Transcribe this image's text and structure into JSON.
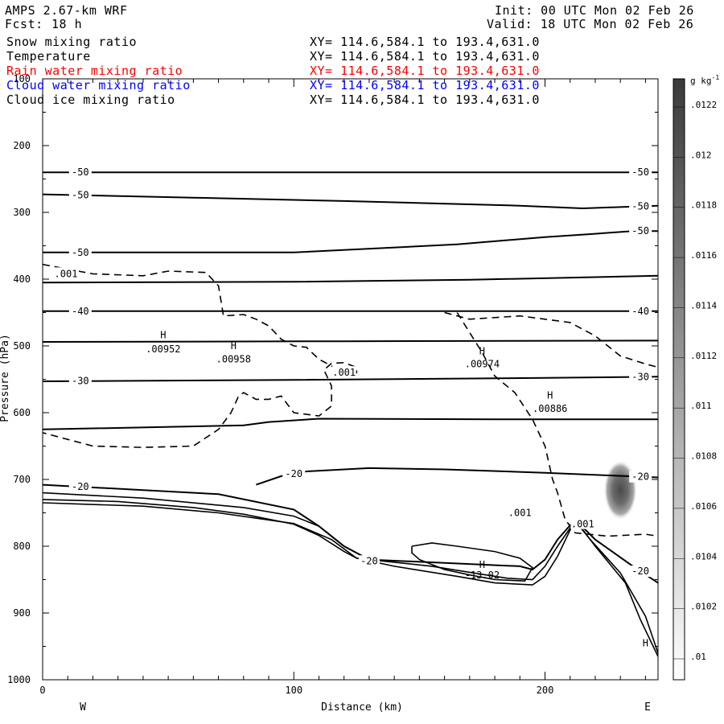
{
  "header": {
    "model": "AMPS 2.67-km WRF",
    "forecast_label": "Fcst:",
    "forecast_hours": "18 h",
    "init": "Init: 00 UTC Mon 02 Feb 26",
    "valid": "Valid: 18 UTC Mon 02 Feb 26"
  },
  "legend": [
    {
      "label": "Snow mixing ratio",
      "xy": "XY= 114.6,584.1 to 193.4,631.0",
      "color": "#000000"
    },
    {
      "label": "Temperature",
      "xy": "XY= 114.6,584.1 to 193.4,631.0",
      "color": "#000000"
    },
    {
      "label": "Rain water mixing ratio",
      "xy": "XY= 114.6,584.1 to 193.4,631.0",
      "color": "#ff0000"
    },
    {
      "label": "Cloud water mixing ratio",
      "xy": "XY= 114.6,584.1 to 193.4,631.0",
      "color": "#0000ff"
    },
    {
      "label": "Cloud ice mixing ratio",
      "xy": "XY= 114.6,584.1 to 193.4,631.0",
      "color": "#000000"
    }
  ],
  "chart_data": {
    "type": "cross-section contour",
    "xlabel": "Distance (km)",
    "ylabel": "Pressure (hPa)",
    "xlim": [
      0,
      245
    ],
    "ylim": [
      1000,
      100
    ],
    "x_ticks": [
      "0",
      "100",
      "200"
    ],
    "y_ticks": [
      "100",
      "200",
      "300",
      "400",
      "500",
      "600",
      "700",
      "800",
      "900",
      "1000"
    ],
    "x_end_labels": {
      "left": "W",
      "right": "E"
    },
    "colorbar": {
      "unit": "g kg",
      "unit_exponent": "-1",
      "labels": [
        ".0122",
        ".012",
        ".0118",
        ".0116",
        ".0114",
        ".0112",
        ".011",
        ".0108",
        ".0106",
        ".0104",
        ".0102",
        ".01"
      ],
      "color_low": "#ffffff",
      "color_high": "#3a3a3a"
    },
    "temperature_contours": [
      {
        "level": "-50",
        "points": [
          [
            0,
            240
          ],
          [
            245,
            240
          ]
        ]
      },
      {
        "level": "-50",
        "points": [
          [
            0,
            273
          ],
          [
            60,
            278
          ],
          [
            120,
            283
          ],
          [
            190,
            290
          ],
          [
            215,
            294
          ],
          [
            230,
            292
          ],
          [
            245,
            290
          ]
        ]
      },
      {
        "level": "-50",
        "points": [
          [
            0,
            360
          ],
          [
            100,
            360
          ],
          [
            165,
            348
          ],
          [
            200,
            337
          ],
          [
            220,
            332
          ],
          [
            235,
            328
          ],
          [
            245,
            328
          ]
        ]
      },
      {
        "level": "",
        "points": [
          [
            0,
            405
          ],
          [
            100,
            404
          ],
          [
            170,
            401
          ],
          [
            245,
            395
          ]
        ]
      },
      {
        "level": "-40",
        "points": [
          [
            0,
            448
          ],
          [
            245,
            448
          ]
        ]
      },
      {
        "level": "",
        "points": [
          [
            0,
            494
          ],
          [
            120,
            493
          ],
          [
            245,
            492
          ]
        ]
      },
      {
        "level": "-30",
        "points": [
          [
            0,
            553
          ],
          [
            100,
            551
          ],
          [
            200,
            548
          ],
          [
            245,
            546
          ]
        ]
      },
      {
        "level": "",
        "points": [
          [
            0,
            625
          ],
          [
            80,
            619
          ],
          [
            90,
            614
          ],
          [
            110,
            609
          ],
          [
            180,
            610
          ],
          [
            245,
            610
          ]
        ]
      },
      {
        "level": "-20",
        "points": [
          [
            85,
            708
          ],
          [
            95,
            695
          ],
          [
            105,
            688
          ],
          [
            130,
            683
          ],
          [
            160,
            685
          ],
          [
            200,
            690
          ],
          [
            245,
            697
          ]
        ]
      },
      {
        "level": "-20",
        "points": [
          [
            0,
            708
          ],
          [
            70,
            722
          ],
          [
            100,
            745
          ],
          [
            110,
            770
          ],
          [
            120,
            800
          ],
          [
            130,
            820
          ],
          [
            160,
            825
          ],
          [
            190,
            830
          ],
          [
            195,
            835
          ],
          [
            200,
            820
          ],
          [
            205,
            790
          ],
          [
            212,
            760
          ],
          [
            220,
            790
          ],
          [
            235,
            830
          ],
          [
            245,
            855
          ]
        ]
      }
    ],
    "snow_contours": [
      {
        "level": ".001",
        "points": [
          [
            0,
            378
          ],
          [
            20,
            392
          ],
          [
            40,
            395
          ],
          [
            50,
            388
          ],
          [
            65,
            390
          ],
          [
            70,
            410
          ],
          [
            72,
            455
          ],
          [
            80,
            453
          ],
          [
            85,
            460
          ],
          [
            90,
            470
          ],
          [
            95,
            490
          ],
          [
            100,
            500
          ],
          [
            105,
            502
          ],
          [
            110,
            520
          ],
          [
            115,
            530
          ],
          [
            118,
            540
          ],
          [
            122,
            545
          ],
          [
            125,
            540
          ],
          [
            125,
            532
          ],
          [
            120,
            525
          ],
          [
            115,
            526
          ],
          [
            112,
            536
          ],
          [
            115,
            560
          ],
          [
            115,
            590
          ],
          [
            110,
            605
          ],
          [
            100,
            600
          ],
          [
            95,
            575
          ],
          [
            90,
            580
          ],
          [
            85,
            580
          ],
          [
            80,
            570
          ],
          [
            78,
            575
          ],
          [
            75,
            600
          ],
          [
            70,
            625
          ],
          [
            60,
            650
          ],
          [
            40,
            652
          ],
          [
            20,
            650
          ],
          [
            0,
            630
          ]
        ]
      },
      {
        "level": ".001",
        "points": [
          [
            165,
            450
          ],
          [
            170,
            480
          ],
          [
            175,
            510
          ],
          [
            180,
            545
          ],
          [
            188,
            570
          ],
          [
            195,
            610
          ],
          [
            200,
            650
          ],
          [
            203,
            700
          ],
          [
            205,
            720
          ],
          [
            208,
            760
          ],
          [
            212,
            780
          ],
          [
            225,
            785
          ],
          [
            240,
            782
          ],
          [
            245,
            785
          ]
        ]
      },
      {
        "level": "",
        "points": [
          [
            160,
            450
          ],
          [
            170,
            460
          ],
          [
            190,
            455
          ],
          [
            200,
            460
          ],
          [
            210,
            465
          ],
          [
            220,
            485
          ],
          [
            230,
            515
          ],
          [
            240,
            527
          ],
          [
            245,
            532
          ]
        ]
      }
    ],
    "ice_contours": [
      {
        "level": "-13.02",
        "points": [
          [
            147,
            800
          ],
          [
            155,
            795
          ],
          [
            165,
            800
          ],
          [
            180,
            808
          ],
          [
            190,
            818
          ],
          [
            195,
            832
          ],
          [
            192,
            852
          ],
          [
            180,
            850
          ],
          [
            170,
            843
          ],
          [
            160,
            835
          ],
          [
            150,
            820
          ],
          [
            147,
            810
          ],
          [
            147,
            800
          ]
        ]
      }
    ],
    "terrain_lines": [
      {
        "points": [
          [
            0,
            730
          ],
          [
            30,
            733
          ],
          [
            60,
            742
          ],
          [
            80,
            752
          ],
          [
            100,
            767
          ],
          [
            110,
            784
          ],
          [
            120,
            808
          ],
          [
            125,
            818
          ],
          [
            135,
            822
          ],
          [
            155,
            830
          ],
          [
            175,
            842
          ],
          [
            185,
            848
          ],
          [
            195,
            850
          ],
          [
            200,
            830
          ],
          [
            205,
            800
          ],
          [
            212,
            762
          ],
          [
            218,
            790
          ],
          [
            230,
            840
          ],
          [
            240,
            905
          ],
          [
            245,
            960
          ]
        ]
      },
      {
        "points": [
          [
            0,
            720
          ],
          [
            40,
            728
          ],
          [
            80,
            742
          ],
          [
            100,
            755
          ],
          [
            110,
            770
          ],
          [
            120,
            800
          ],
          [
            130,
            820
          ]
        ]
      },
      {
        "points": [
          [
            0,
            735
          ],
          [
            40,
            740
          ],
          [
            70,
            750
          ],
          [
            100,
            766
          ],
          [
            115,
            790
          ],
          [
            125,
            818
          ],
          [
            140,
            830
          ],
          [
            165,
            845
          ],
          [
            180,
            855
          ],
          [
            195,
            858
          ],
          [
            200,
            845
          ],
          [
            205,
            815
          ],
          [
            212,
            760
          ],
          [
            220,
            800
          ],
          [
            232,
            855
          ],
          [
            238,
            910
          ],
          [
            245,
            965
          ]
        ]
      }
    ],
    "cloud_ice_max": {
      "x": 230,
      "p": 716,
      "rx": 13,
      "ry": 45
    },
    "annotations": [
      {
        "text": "H",
        "x": 48,
        "p": 484
      },
      {
        "text": ".00952",
        "x": 48,
        "p": 505
      },
      {
        "text": "H",
        "x": 76,
        "p": 500
      },
      {
        "text": ".00958",
        "x": 76,
        "p": 520
      },
      {
        "text": "H",
        "x": 175,
        "p": 508
      },
      {
        "text": ".00974",
        "x": 175,
        "p": 527
      },
      {
        "text": "H",
        "x": 202,
        "p": 574
      },
      {
        "text": ".00886",
        "x": 202,
        "p": 594
      },
      {
        "text": ".001",
        "x": 120,
        "p": 540
      },
      {
        "text": ".001",
        "x": 190,
        "p": 750
      },
      {
        "text": ".001",
        "x": 215,
        "p": 767
      },
      {
        "text": "H",
        "x": 175,
        "p": 828
      },
      {
        "text": "H",
        "x": 240,
        "p": 945
      }
    ]
  }
}
